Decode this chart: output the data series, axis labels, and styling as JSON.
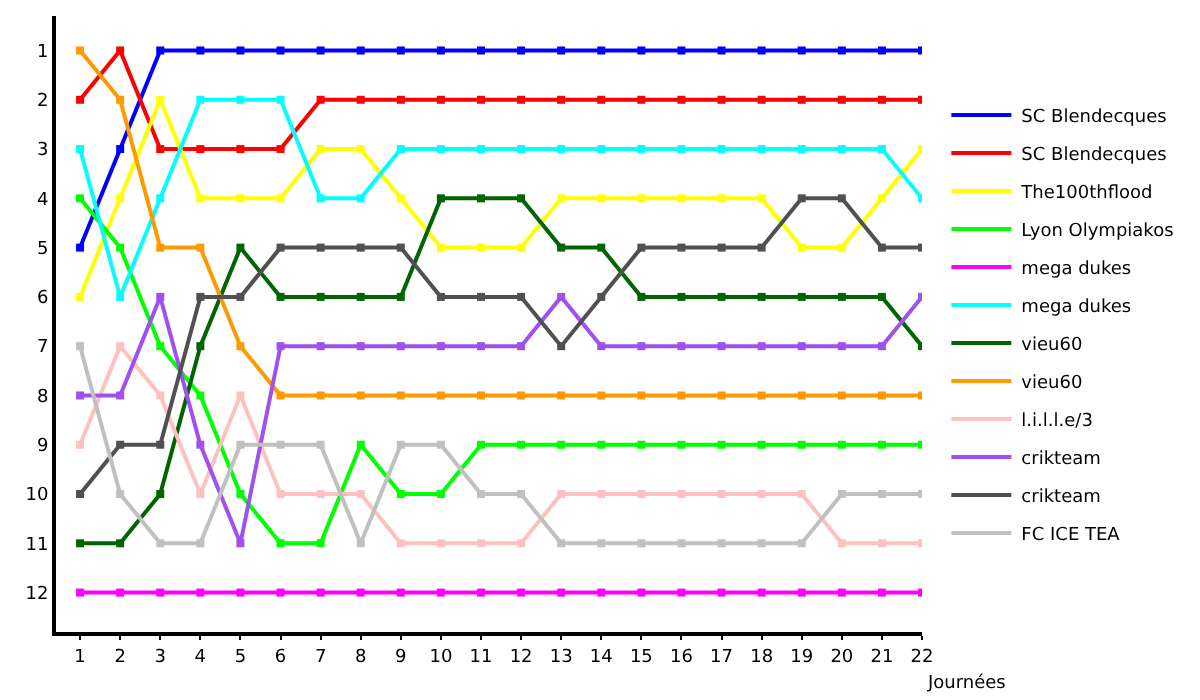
{
  "chart_data": {
    "type": "line",
    "xlabel": "Journées",
    "x": [
      1,
      2,
      3,
      4,
      5,
      6,
      7,
      8,
      9,
      10,
      11,
      12,
      13,
      14,
      15,
      16,
      17,
      18,
      19,
      20,
      21,
      22
    ],
    "xlim": [
      0.4,
      22
    ],
    "xticks": [
      1,
      2,
      3,
      4,
      5,
      6,
      7,
      8,
      9,
      10,
      11,
      12,
      13,
      14,
      15,
      16,
      17,
      18,
      19,
      20,
      21,
      22
    ],
    "ylim": [
      12.8,
      0.3
    ],
    "yticks": [
      1,
      2,
      3,
      4,
      5,
      6,
      7,
      8,
      9,
      10,
      11,
      12
    ],
    "grid": false,
    "legend": "right",
    "marker": "square",
    "line_style": "solid",
    "series": [
      {
        "name": "SC Blendecques",
        "color": "#0000ff",
        "values": [
          5,
          3,
          1,
          1,
          1,
          1,
          1,
          1,
          1,
          1,
          1,
          1,
          1,
          1,
          1,
          1,
          1,
          1,
          1,
          1,
          1,
          1
        ]
      },
      {
        "name": "SC Blendecques",
        "color": "#ff0000",
        "values": [
          2,
          1,
          3,
          3,
          3,
          3,
          2,
          2,
          2,
          2,
          2,
          2,
          2,
          2,
          2,
          2,
          2,
          2,
          2,
          2,
          2,
          2
        ]
      },
      {
        "name": "The100thflood",
        "color": "#ffff00",
        "values": [
          6,
          4,
          2,
          4,
          4,
          4,
          3,
          3,
          4,
          5,
          5,
          5,
          4,
          4,
          4,
          4,
          4,
          4,
          5,
          5,
          4,
          3
        ]
      },
      {
        "name": "Lyon Olympiakos",
        "color": "#00ff00",
        "values": [
          4,
          5,
          7,
          8,
          10,
          11,
          11,
          9,
          10,
          10,
          9,
          9,
          9,
          9,
          9,
          9,
          9,
          9,
          9,
          9,
          9,
          9
        ]
      },
      {
        "name": "mega dukes",
        "color": "#ff00ff",
        "values": [
          12,
          12,
          12,
          12,
          12,
          12,
          12,
          12,
          12,
          12,
          12,
          12,
          12,
          12,
          12,
          12,
          12,
          12,
          12,
          12,
          12,
          12
        ]
      },
      {
        "name": "mega dukes",
        "color": "#00ffff",
        "values": [
          3,
          6,
          4,
          2,
          2,
          2,
          4,
          4,
          3,
          3,
          3,
          3,
          3,
          3,
          3,
          3,
          3,
          3,
          3,
          3,
          3,
          4
        ]
      },
      {
        "name": "vieu60",
        "color": "#006400",
        "values": [
          11,
          11,
          10,
          7,
          5,
          6,
          6,
          6,
          6,
          4,
          4,
          4,
          5,
          5,
          6,
          6,
          6,
          6,
          6,
          6,
          6,
          7
        ]
      },
      {
        "name": "vieu60",
        "color": "#ff9900",
        "values": [
          1,
          2,
          5,
          5,
          7,
          8,
          8,
          8,
          8,
          8,
          8,
          8,
          8,
          8,
          8,
          8,
          8,
          8,
          8,
          8,
          8,
          8
        ]
      },
      {
        "name": "l.i.l.l.e/3",
        "color": "#ffc0c0",
        "values": [
          9,
          7,
          8,
          10,
          8,
          10,
          10,
          10,
          11,
          11,
          11,
          11,
          10,
          10,
          10,
          10,
          10,
          10,
          10,
          11,
          11,
          11
        ]
      },
      {
        "name": "crikteam",
        "color": "#a050f0",
        "values": [
          8,
          8,
          6,
          9,
          11,
          7,
          7,
          7,
          7,
          7,
          7,
          7,
          6,
          7,
          7,
          7,
          7,
          7,
          7,
          7,
          7,
          6
        ]
      },
      {
        "name": "crikteam",
        "color": "#505050",
        "values": [
          10,
          9,
          9,
          6,
          6,
          5,
          5,
          5,
          5,
          6,
          6,
          6,
          7,
          6,
          5,
          5,
          5,
          5,
          4,
          4,
          5,
          5
        ]
      },
      {
        "name": "FC ICE TEA",
        "color": "#c0c0c0",
        "values": [
          7,
          10,
          11,
          11,
          9,
          9,
          9,
          11,
          9,
          9,
          10,
          10,
          11,
          11,
          11,
          11,
          11,
          11,
          11,
          10,
          10,
          10
        ]
      }
    ]
  }
}
